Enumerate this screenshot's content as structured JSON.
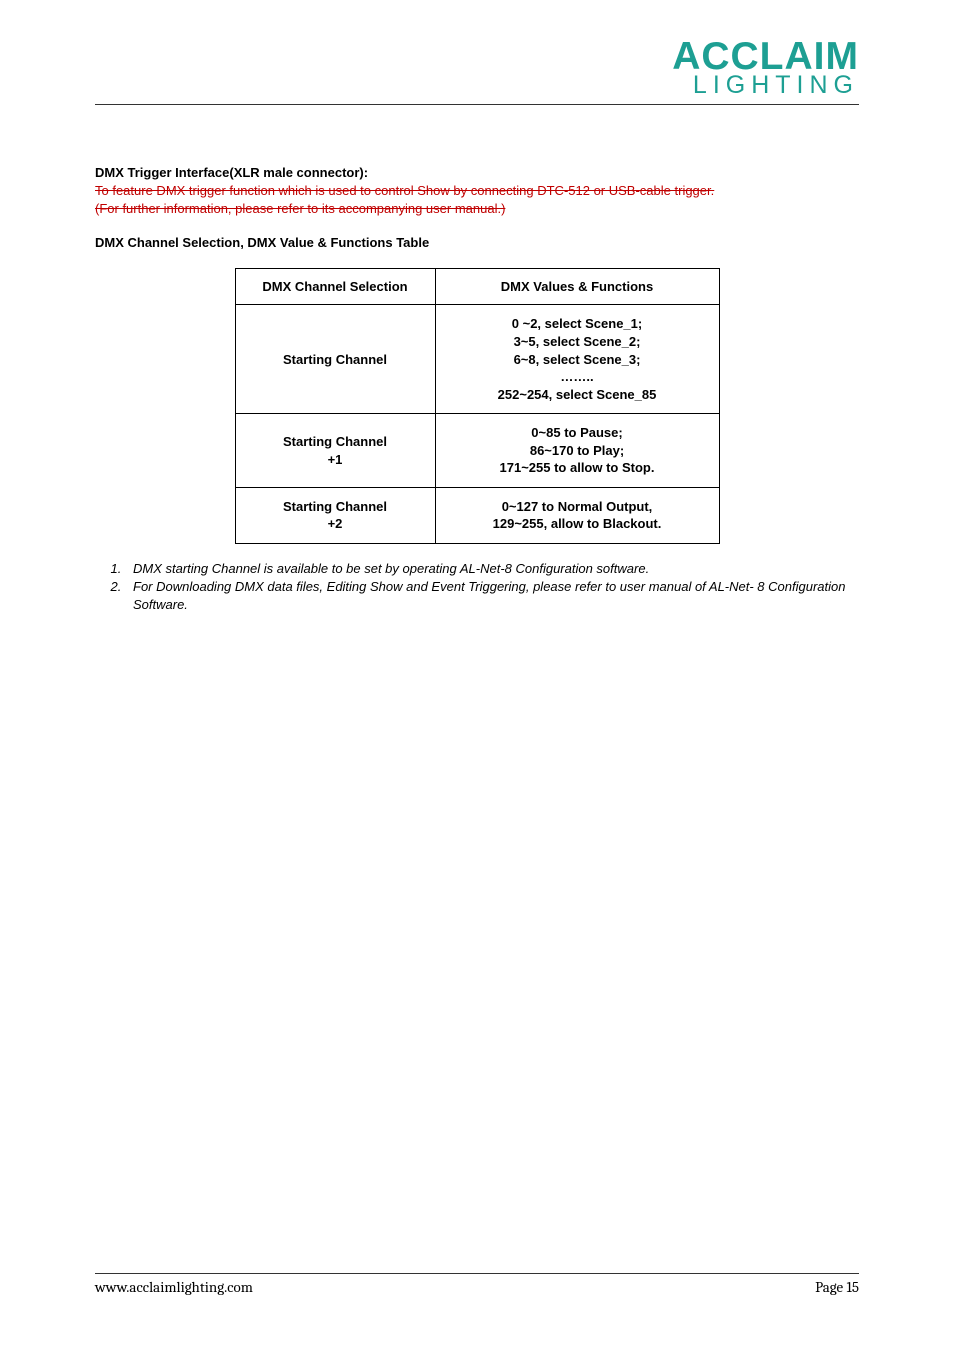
{
  "logo": {
    "top": "ACCLAIM",
    "bottom": "LIGHTING",
    "color": "#1d9f93"
  },
  "section1": {
    "title": "DMX Trigger Interface(XLR male connector):",
    "strike_line1": "To feature DMX trigger function which is used to control Show by connecting DTC-512 or USB-cable trigger.",
    "strike_line2": "(For further information, please refer to its accompanying user manual.)"
  },
  "table_heading": "DMX Channel Selection, DMX Value & Functions Table",
  "table": {
    "header": {
      "col1": "DMX Channel Selection",
      "col2": "DMX Values & Functions"
    },
    "rows": [
      {
        "col1_line1": "Starting Channel",
        "col1_line2": "",
        "col2_line1": "0 ~2, select Scene_1;",
        "col2_line2": "3~5, select Scene_2;",
        "col2_line3": "6~8, select Scene_3;",
        "col2_line4": "……..",
        "col2_line5": "252~254, select Scene_85"
      },
      {
        "col1_line1": "Starting Channel",
        "col1_line2": "+1",
        "col2_line1": "0~85 to Pause;",
        "col2_line2": "86~170 to Play;",
        "col2_line3": "171~255 to allow to Stop."
      },
      {
        "col1_line1": "Starting Channel",
        "col1_line2": "+2",
        "col2_line1": "0~127 to Normal Output,",
        "col2_line2": "129~255, allow to Blackout."
      }
    ]
  },
  "notes": {
    "item1": "DMX starting Channel is available to be set by operating AL-Net-8 Configuration software.",
    "item2": "For Downloading DMX data files, Editing Show and Event Triggering, please refer to user manual of AL-Net- 8 Configuration Software."
  },
  "footer": {
    "url": "www.acclaimlighting.com",
    "page": "Page 15"
  }
}
